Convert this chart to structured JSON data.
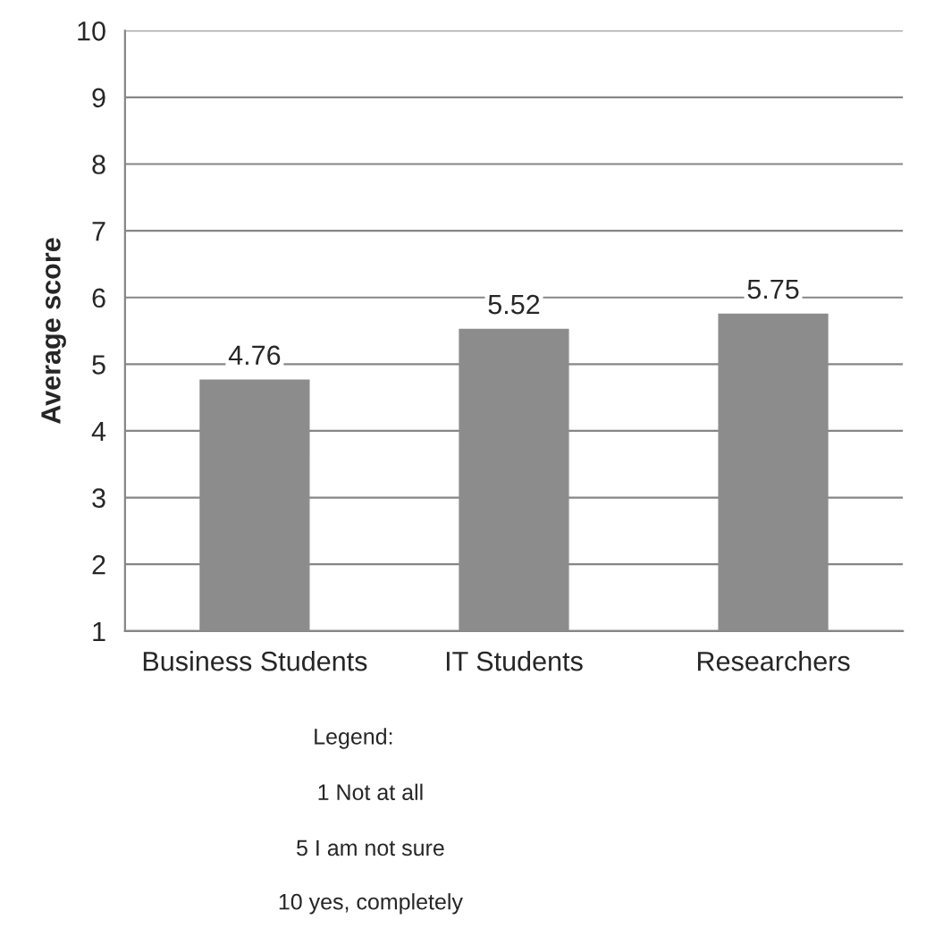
{
  "chart_data": {
    "type": "bar",
    "ylabel": "Average score",
    "categories": [
      "Business Students",
      "IT Students",
      "Researchers"
    ],
    "values": [
      4.76,
      5.52,
      5.75
    ],
    "color": "#8c8c8c",
    "ylim": [
      1,
      10
    ],
    "yticks": [
      1,
      2,
      3,
      4,
      5,
      6,
      7,
      8,
      9,
      10
    ],
    "grid": "y",
    "data_labels": true,
    "legend": false,
    "annotations": [
      "Legend:",
      "1 Not at all",
      "5 I am not sure",
      "10 yes, completely"
    ]
  }
}
